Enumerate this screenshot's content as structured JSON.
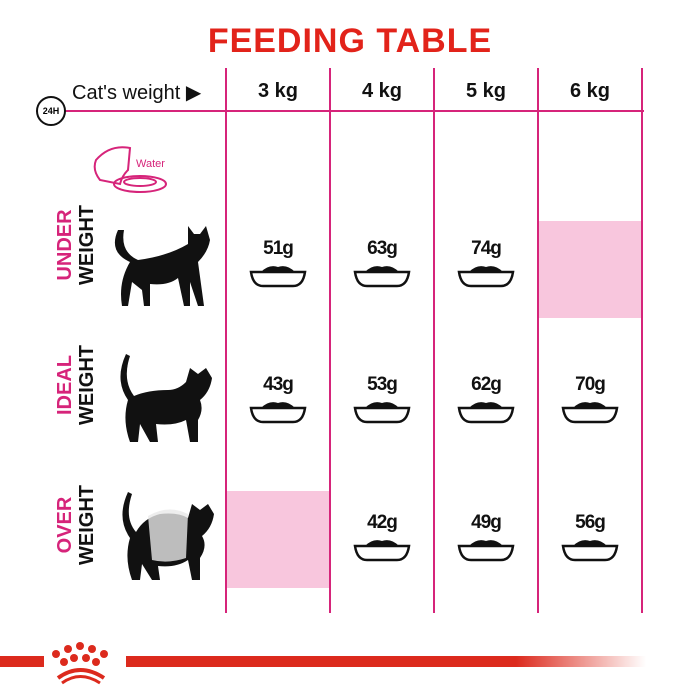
{
  "title": "FEEDING TABLE",
  "header": {
    "weight_label": "Cat's weight",
    "clock_label": "24H",
    "weights": [
      "3 kg",
      "4 kg",
      "5 kg",
      "6 kg"
    ]
  },
  "water_label": "Water",
  "rows": [
    {
      "label_a": "UNDER",
      "label_b": "WEIGHT",
      "values": [
        "51g",
        "63g",
        "74g",
        null
      ]
    },
    {
      "label_a": "IDEAL",
      "label_b": "WEIGHT",
      "values": [
        "43g",
        "53g",
        "62g",
        "70g"
      ]
    },
    {
      "label_a": "OVER",
      "label_b": "WEIGHT",
      "values": [
        null,
        "42g",
        "49g",
        "56g"
      ]
    }
  ],
  "colors": {
    "title": "#e2231a",
    "accent": "#d6247a",
    "empty_cell": "#f8c6dd",
    "brand": "#dc2a1d"
  },
  "icons": [
    "clock-24h-icon",
    "play-arrow-icon",
    "water-bowl-icon",
    "cat-silhouette-icon",
    "food-bowl-icon",
    "royal-canin-crown-logo"
  ]
}
